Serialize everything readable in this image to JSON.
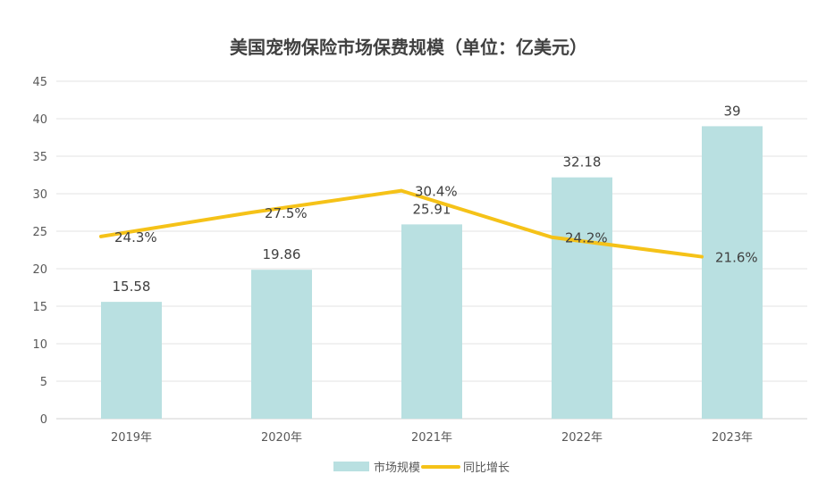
{
  "chart_data": {
    "type": "bar",
    "title": "美国宠物保险市场保费规模（单位：亿美元）",
    "categories": [
      "2019年",
      "2020年",
      "2021年",
      "2022年",
      "2023年"
    ],
    "ylim": [
      0,
      45
    ],
    "yticks": [
      0,
      5,
      10,
      15,
      20,
      25,
      30,
      35,
      40,
      45
    ],
    "grid": true,
    "legend_position": "bottom",
    "series": [
      {
        "name": "市场规模",
        "type": "bar",
        "color": "#b9e0e1",
        "values": [
          15.58,
          19.86,
          25.91,
          32.18,
          39
        ],
        "labels": [
          "15.58",
          "19.86",
          "25.91",
          "32.18",
          "39"
        ]
      },
      {
        "name": "同比增长",
        "type": "line",
        "color": "#f5c218",
        "values": [
          24.3,
          27.5,
          30.4,
          24.2,
          21.6
        ],
        "labels": [
          "24.3%",
          "27.5%",
          "30.4%",
          "24.2%",
          "21.6%"
        ]
      }
    ]
  }
}
